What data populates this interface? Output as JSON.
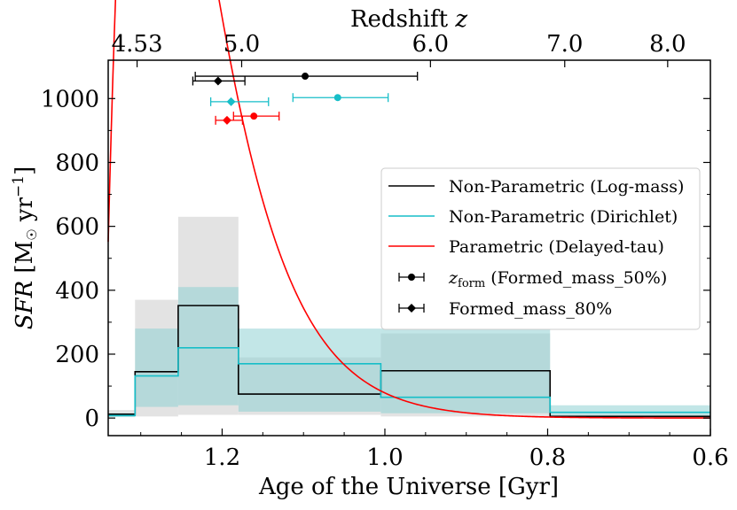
{
  "chart_data": {
    "type": "line",
    "xlabel": "Age of the Universe [Gyr]",
    "ylabel_main": "SFR",
    "ylabel_unit": "[M",
    "ylabel_unit_rest": "yr",
    "ylabel_exp": "−1",
    "ylabel_close": "]",
    "top_xlabel": "Redshift",
    "top_xlabel_var": "z",
    "x_reversed": true,
    "xlim": [
      1.34,
      0.6
    ],
    "ylim": [
      -55,
      1120
    ],
    "x_ticks": [
      1.2,
      1.0,
      0.8,
      0.6
    ],
    "x_tick_labels": [
      "1.2",
      "1.0",
      "0.8",
      "0.6"
    ],
    "y_ticks": [
      0,
      200,
      400,
      600,
      800,
      1000
    ],
    "y_tick_labels": [
      "0",
      "200",
      "400",
      "600",
      "800",
      "1000"
    ],
    "top_ticks": [
      1.3045,
      1.176,
      0.944,
      0.779,
      0.6525
    ],
    "top_tick_labels": [
      "4.53",
      "5.0",
      "6.0",
      "7.0",
      "8.0"
    ],
    "grid": false,
    "legend_position": "center-right",
    "series": [
      {
        "name": "Non-Parametric (Log-mass)",
        "color": "#000000",
        "edges": [
          1.34,
          1.307,
          1.254,
          1.18,
          1.005,
          0.797,
          0.6
        ],
        "values": [
          12,
          145,
          352,
          75,
          148,
          5,
          5
        ],
        "band_low": [
          5,
          5,
          10,
          10,
          5,
          0,
          0
        ],
        "band_high": [
          25,
          370,
          630,
          190,
          265,
          10,
          10
        ],
        "band_color": "#e3e3e3"
      },
      {
        "name": "Non-Parametric (Dirichlet)",
        "color": "#17bec8",
        "edges": [
          1.34,
          1.307,
          1.254,
          1.18,
          1.005,
          0.797,
          0.6
        ],
        "values": [
          8,
          132,
          220,
          170,
          65,
          18,
          18
        ],
        "band_low": [
          3,
          35,
          40,
          20,
          15,
          5,
          5
        ],
        "band_high": [
          15,
          280,
          410,
          280,
          280,
          40,
          40
        ],
        "band_color": "#8fd1d4"
      },
      {
        "name": "Parametric (Delayed-tau)",
        "color": "#ff0000",
        "tau": 0.055,
        "t_start": 1.135,
        "peak": 880,
        "x_peak": 1.1435
      }
    ],
    "points": [
      {
        "name": "z_form (Formed_mass_50%)",
        "legend_sub": "form",
        "legend_var": "z",
        "legend_text": " (Formed_mass_50%)",
        "marker": "circle",
        "color": "#000000",
        "x": 1.098,
        "xerr": [
          0.135,
          0.138
        ],
        "y": 1070
      },
      {
        "name": "Formed_mass_80%",
        "marker": "diamond",
        "color": "#000000",
        "x": 1.205,
        "xerr": [
          0.031,
          0.033
        ],
        "y": 1055
      },
      {
        "marker": "circle",
        "color": "#17bec8",
        "x": 1.058,
        "xerr": [
          0.055,
          0.062
        ],
        "y": 1003
      },
      {
        "marker": "diamond",
        "color": "#17bec8",
        "x": 1.189,
        "xerr": [
          0.025,
          0.046
        ],
        "y": 990
      },
      {
        "marker": "circle",
        "color": "#ff0000",
        "x": 1.161,
        "xerr": [
          0.025,
          0.031
        ],
        "y": 945
      },
      {
        "marker": "diamond",
        "color": "#ff0000",
        "x": 1.194,
        "xerr": [
          0.014,
          0.019
        ],
        "y": 932
      }
    ]
  }
}
